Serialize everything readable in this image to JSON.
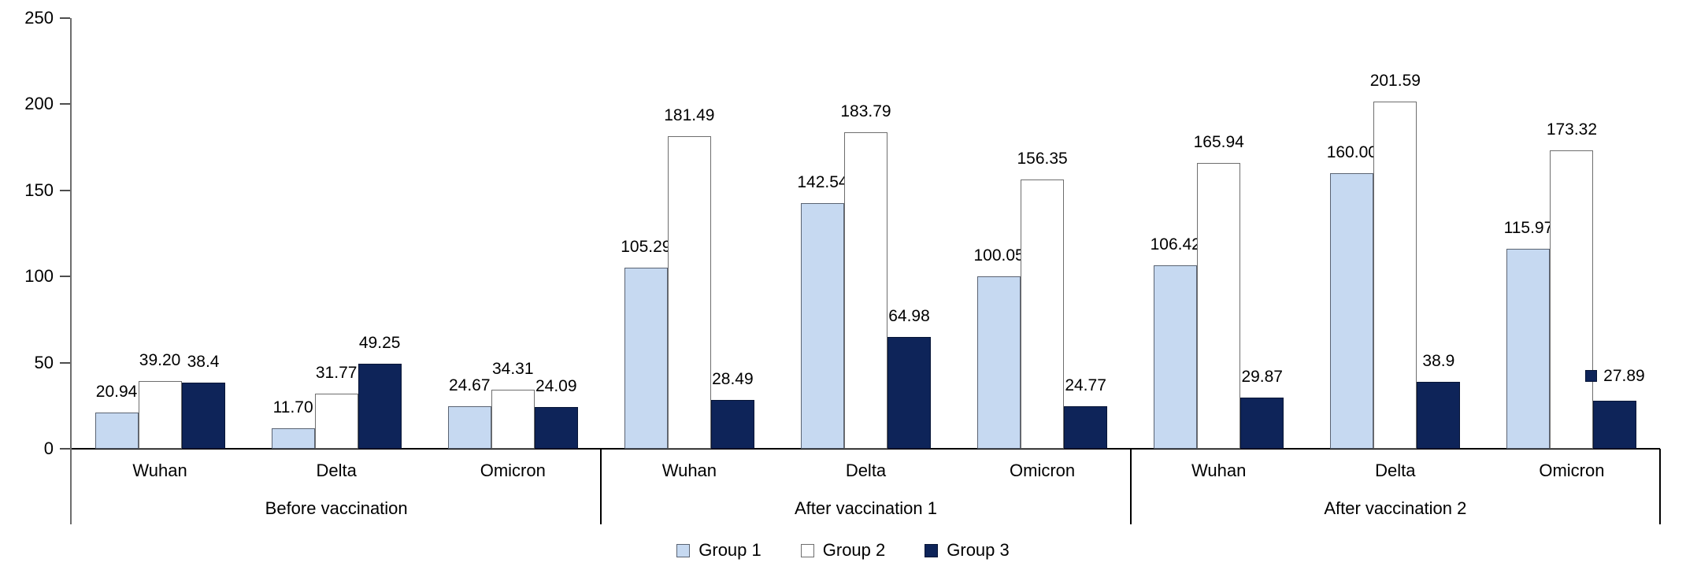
{
  "chart_data": {
    "type": "bar",
    "title": "",
    "xlabel": "",
    "ylabel": "",
    "grid": false,
    "legend_position": "bottom-center",
    "y_axis": {
      "min": 0,
      "max": 250,
      "tick_interval": 50,
      "ticks": [
        0,
        50,
        100,
        150,
        200,
        250
      ],
      "tick_labels": [
        "0",
        "50",
        "100",
        "150",
        "200",
        "250"
      ]
    },
    "series": [
      {
        "name": "Group 1",
        "fill": "#C6D9F1",
        "border": "#5a6372"
      },
      {
        "name": "Group 2",
        "fill": "#FFFFFF",
        "border": "#6e6e6e"
      },
      {
        "name": "Group 3",
        "fill": "#0E2459",
        "border": "#071536"
      }
    ],
    "panels": [
      {
        "label": "Before vaccination",
        "categories": [
          {
            "label": "Wuhan",
            "values": [
              20.94,
              39.2,
              38.4
            ],
            "value_labels": [
              "20.94",
              "39.20",
              "38.4"
            ]
          },
          {
            "label": "Delta",
            "values": [
              11.7,
              31.77,
              49.25
            ],
            "value_labels": [
              "11.70",
              "31.77",
              "49.25"
            ]
          },
          {
            "label": "Omicron",
            "values": [
              24.67,
              34.31,
              24.09
            ],
            "value_labels": [
              "24.67",
              "34.31",
              "24.09"
            ]
          }
        ]
      },
      {
        "label": "After vaccination 1",
        "categories": [
          {
            "label": "Wuhan",
            "values": [
              105.29,
              181.49,
              28.49
            ],
            "value_labels": [
              "105.29",
              "181.49",
              "28.49"
            ]
          },
          {
            "label": "Delta",
            "values": [
              142.54,
              183.79,
              64.98
            ],
            "value_labels": [
              "142.54",
              "183.79",
              "64.98"
            ]
          },
          {
            "label": "Omicron",
            "values": [
              100.05,
              156.35,
              24.77
            ],
            "value_labels": [
              "100.05",
              "156.35",
              "24.77"
            ]
          }
        ]
      },
      {
        "label": "After vaccination 2",
        "categories": [
          {
            "label": "Wuhan",
            "values": [
              106.42,
              165.94,
              29.87
            ],
            "value_labels": [
              "106.42",
              "165.94",
              "29.87"
            ]
          },
          {
            "label": "Delta",
            "values": [
              160.0,
              201.59,
              38.9
            ],
            "value_labels": [
              "160.00",
              "201.59",
              "38.9"
            ]
          },
          {
            "label": "Omicron",
            "values": [
              115.97,
              173.32,
              27.89
            ],
            "value_labels": [
              "115.97",
              "173.32",
              "27.89"
            ],
            "legend_keys": [
              false,
              false,
              true
            ]
          }
        ]
      }
    ],
    "legend_entries": [
      "Group 1",
      "Group 2",
      "Group 3"
    ]
  }
}
